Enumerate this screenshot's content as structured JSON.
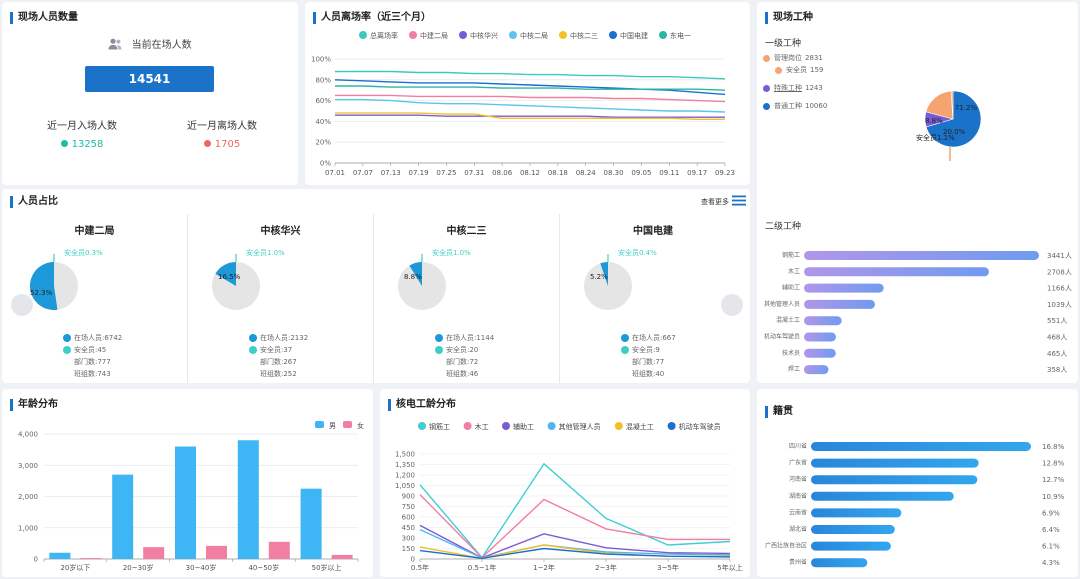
{
  "headcount": {
    "title": "现场人员数量",
    "current_label": "当前在场人数",
    "current_value": "14541",
    "entry_label": "近一月入场人数",
    "entry_value": "13258",
    "exit_label": "近一月离场人数",
    "exit_value": "1705"
  },
  "departure": {
    "title": "人员离场率（近三个月）"
  },
  "worktype": {
    "title": "现场工种",
    "level1_title": "一级工种",
    "level1_items": [
      {
        "label": "管理岗位",
        "value": "2831",
        "color": "#f5a36f"
      },
      {
        "label": "安全员",
        "value": "159",
        "color": "#f5a36f"
      },
      {
        "label": "特殊工种",
        "value": "1243",
        "color": "#7a5bd7"
      },
      {
        "label": "普通工种",
        "value": "10060",
        "color": "#1a73c9"
      }
    ],
    "pie_labels": [
      "71.2%",
      "8.8%",
      "20.0%",
      "安全员1.1%"
    ],
    "level2_title": "二级工种"
  },
  "ratio": {
    "title": "人员占比",
    "more_label": "查看更多",
    "cards": [
      {
        "name": "中建二局",
        "safety_label": "安全员0.3%",
        "pct_label": "52.3%",
        "onsite": "在场人员:6742",
        "safety": "安全员:45",
        "dept": "部门数:777",
        "team": "班组数:743"
      },
      {
        "name": "中核华兴",
        "safety_label": "安全员1.0%",
        "pct_label": "16.5%",
        "onsite": "在场人员:2132",
        "safety": "安全员:37",
        "dept": "部门数:267",
        "team": "班组数:252"
      },
      {
        "name": "中核二三",
        "safety_label": "安全员1.0%",
        "pct_label": "8.8%",
        "onsite": "在场人员:1144",
        "safety": "安全员:20",
        "dept": "部门数:72",
        "team": "班组数:46"
      },
      {
        "name": "中国电建",
        "safety_label": "安全员0.4%",
        "pct_label": "5.2%",
        "onsite": "在场人员:667",
        "safety": "安全员:9",
        "dept": "部门数:77",
        "team": "班组数:40"
      }
    ]
  },
  "age": {
    "title": "年龄分布"
  },
  "tenure": {
    "title": "核电工龄分布"
  },
  "native": {
    "title": "籍贯"
  },
  "colors": {
    "accent": "#1a73c9",
    "male": "#3eb5f5",
    "female": "#f27ea2",
    "entry": "#1fbba6",
    "exit": "#ef6565"
  },
  "chart_data": [
    {
      "id": "departure_rate",
      "type": "line",
      "title": "人员离场率（近三个月）",
      "x": [
        "07.01",
        "07.07",
        "07.13",
        "07.19",
        "07.25",
        "07.31",
        "08.06",
        "08.12",
        "08.18",
        "08.24",
        "08.30",
        "09.05",
        "09.11",
        "09.17",
        "09.23"
      ],
      "yticks": [
        "0%",
        "20%",
        "40%",
        "60%",
        "80%",
        "100%"
      ],
      "ylim": [
        0,
        100
      ],
      "series": [
        {
          "name": "总离场率",
          "color": "#3cc9c0",
          "values": [
            88,
            88,
            88,
            87,
            87,
            86,
            86,
            85,
            85,
            84,
            84,
            83,
            83,
            82,
            81
          ]
        },
        {
          "name": "中建二局",
          "color": "#f27ea2",
          "values": [
            65,
            65,
            65,
            64,
            64,
            64,
            64,
            63,
            63,
            63,
            62,
            62,
            61,
            60,
            59
          ]
        },
        {
          "name": "中核华兴",
          "color": "#7a5bd7",
          "values": [
            46,
            46,
            46,
            46,
            45,
            45,
            45,
            45,
            45,
            45,
            44,
            44,
            44,
            44,
            44
          ]
        },
        {
          "name": "中核二局",
          "color": "#5bc4ef",
          "values": [
            61,
            61,
            60,
            58,
            57,
            57,
            56,
            55,
            54,
            53,
            52,
            51,
            50,
            50,
            49
          ]
        },
        {
          "name": "中核二三",
          "color": "#f5c026",
          "values": [
            48,
            48,
            48,
            48,
            47,
            47,
            43,
            43,
            43,
            43,
            43,
            43,
            43,
            42,
            42
          ]
        },
        {
          "name": "中国电建",
          "color": "#1a6fd1",
          "values": [
            80,
            79,
            78,
            77,
            77,
            77,
            76,
            75,
            74,
            73,
            72,
            71,
            70,
            68,
            66
          ]
        },
        {
          "name": "东电一",
          "color": "#2bb5a5",
          "values": [
            74,
            74,
            73,
            73,
            73,
            73,
            72,
            72,
            72,
            71,
            71,
            71,
            71,
            71,
            70
          ]
        }
      ]
    },
    {
      "id": "worktype_level1_pie",
      "type": "pie",
      "categories": [
        "普通工种",
        "特殊工种",
        "管理岗位",
        "安全员"
      ],
      "values": [
        71.2,
        8.8,
        20.0,
        1.1
      ],
      "colors": [
        "#1a73c9",
        "#7a5bd7",
        "#f5a36f",
        "#f5a36f"
      ]
    },
    {
      "id": "worktype_level2",
      "type": "bar",
      "orientation": "horizontal",
      "categories": [
        "钢筋工",
        "木工",
        "辅助工",
        "其他管理人员",
        "混凝土工",
        "机动车驾驶员",
        "技术员",
        "焊工"
      ],
      "values": [
        3441,
        2708,
        1166,
        1039,
        551,
        468,
        465,
        358
      ],
      "value_labels": [
        "3441人",
        "2708人",
        "1166人",
        "1039人",
        "551人",
        "468人",
        "465人",
        "358人"
      ]
    },
    {
      "id": "company_ratio",
      "type": "pie",
      "categories": [
        "中建二局",
        "中核华兴",
        "中核二三",
        "中国电建"
      ],
      "values": [
        52.3,
        16.5,
        8.8,
        5.2
      ]
    },
    {
      "id": "age_distribution",
      "type": "bar",
      "title": "年龄分布",
      "categories": [
        "20岁以下",
        "20~30岁",
        "30~40岁",
        "40~50岁",
        "50岁以上"
      ],
      "series": [
        {
          "name": "男",
          "color": "#3eb5f5",
          "values": [
            200,
            2700,
            3600,
            3800,
            2250
          ]
        },
        {
          "name": "女",
          "color": "#f27ea2",
          "values": [
            30,
            380,
            420,
            550,
            130
          ]
        }
      ],
      "yticks": [
        "0",
        "1,000",
        "2,000",
        "3,000",
        "4,000"
      ],
      "ylim": [
        0,
        4000
      ]
    },
    {
      "id": "tenure_distribution",
      "type": "line",
      "title": "核电工龄分布",
      "categories": [
        "0.5年",
        "0.5~1年",
        "1~2年",
        "2~3年",
        "3~5年",
        "5年以上"
      ],
      "yticks": [
        "0",
        "150",
        "300",
        "450",
        "600",
        "750",
        "900",
        "1,050",
        "1,200",
        "1,350",
        "1,500"
      ],
      "ylim": [
        0,
        1500
      ],
      "series": [
        {
          "name": "钢筋工",
          "color": "#3ecfd2",
          "values": [
            1060,
            20,
            1360,
            580,
            200,
            250
          ]
        },
        {
          "name": "木工",
          "color": "#f27ea2",
          "values": [
            920,
            20,
            850,
            430,
            280,
            280
          ]
        },
        {
          "name": "辅助工",
          "color": "#7a5bd7",
          "values": [
            480,
            15,
            360,
            160,
            90,
            80
          ]
        },
        {
          "name": "其他管理人员",
          "color": "#4fb6f0",
          "values": [
            420,
            15,
            200,
            100,
            70,
            60
          ]
        },
        {
          "name": "混凝土工",
          "color": "#f5c026",
          "values": [
            170,
            10,
            200,
            80,
            40,
            40
          ]
        },
        {
          "name": "机动车驾驶员",
          "color": "#1a6fd1",
          "values": [
            120,
            10,
            150,
            70,
            40,
            30
          ]
        }
      ]
    },
    {
      "id": "native_place",
      "type": "bar",
      "orientation": "horizontal",
      "title": "籍贯",
      "categories": [
        "四川省",
        "广东省",
        "河南省",
        "湖南省",
        "云南省",
        "湖北省",
        "广西壮族自治区",
        "贵州省"
      ],
      "values": [
        16.8,
        12.8,
        12.7,
        10.9,
        6.9,
        6.4,
        6.1,
        4.3
      ],
      "value_labels": [
        "16.8%",
        "12.8%",
        "12.7%",
        "10.9%",
        "6.9%",
        "6.4%",
        "6.1%",
        "4.3%"
      ]
    }
  ]
}
